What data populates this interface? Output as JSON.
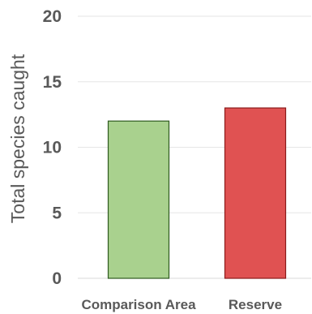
{
  "chart_data": {
    "type": "bar",
    "title": "",
    "xlabel": "",
    "ylabel": "Total species caught",
    "categories": [
      "Comparison Area",
      "Reserve"
    ],
    "values": [
      12,
      13
    ],
    "colors": [
      "#a9d18e",
      "#e05252"
    ],
    "edge_colors": [
      "#2e5a1f",
      "#8b1a1a"
    ],
    "ylim": [
      0,
      20
    ],
    "yticks": [
      "0",
      "5",
      "10",
      "15",
      "20"
    ],
    "grid": true,
    "legend": "none"
  }
}
